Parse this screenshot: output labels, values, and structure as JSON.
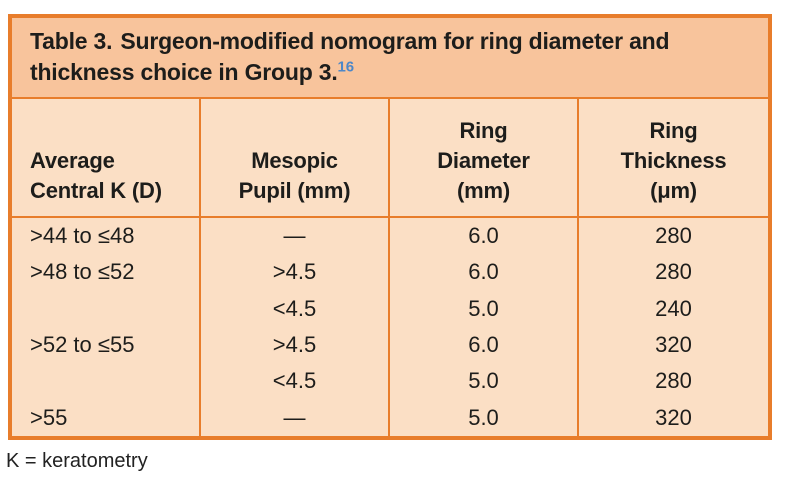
{
  "accent_colors": {
    "border_orange": "#e87d2b",
    "title_background": "#f8c49c",
    "body_background": "#fbdfc5",
    "citation_blue": "#4d87c8",
    "text_color": "#1d1d1b"
  },
  "table": {
    "title_label": "Table 3.",
    "title_text": "Surgeon-modified nomogram for ring diameter and thickness choice in Group 3.",
    "citation": "16",
    "headers": [
      {
        "lines": [
          "Average",
          "Central K (D)"
        ]
      },
      {
        "lines": [
          "Mesopic",
          "Pupil (mm)"
        ]
      },
      {
        "lines": [
          "Ring",
          "Diameter",
          "(mm)"
        ]
      },
      {
        "lines": [
          "Ring",
          "Thickness",
          "(μm)"
        ]
      }
    ],
    "rows": [
      [
        ">44 to ≤48",
        "—",
        "6.0",
        "280"
      ],
      [
        ">48 to ≤52",
        ">4.5",
        "6.0",
        "280"
      ],
      [
        "",
        "<4.5",
        "5.0",
        "240"
      ],
      [
        ">52 to ≤55",
        ">4.5",
        "6.0",
        "320"
      ],
      [
        "",
        "<4.5",
        "5.0",
        "280"
      ],
      [
        ">55",
        "—",
        "5.0",
        "320"
      ]
    ]
  },
  "footnote": {
    "text": "K = keratometry"
  }
}
